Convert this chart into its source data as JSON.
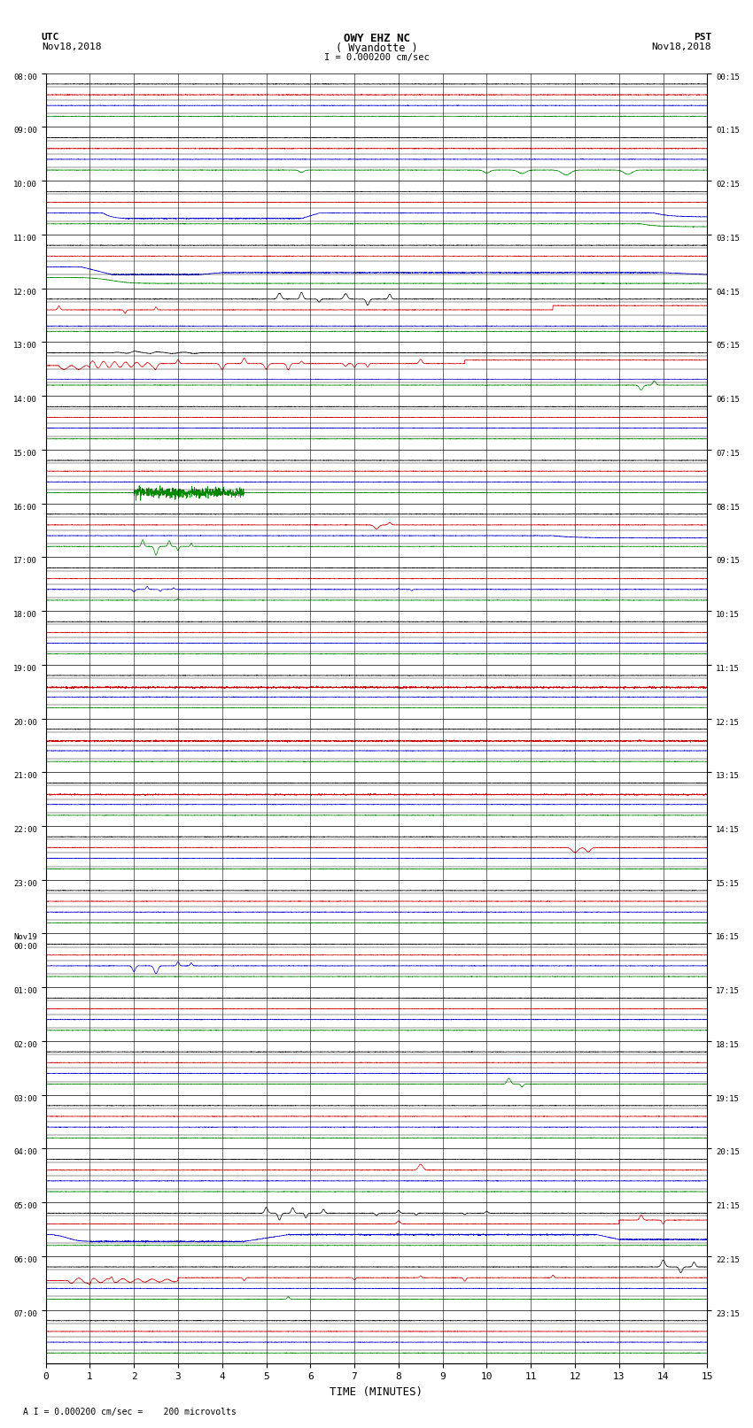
{
  "title_line1": "OWY EHZ NC",
  "title_line2": "( Wyandotte )",
  "title_scale": "I = 0.000200 cm/sec",
  "utc_label": "UTC",
  "utc_date": "Nov18,2018",
  "pst_label": "PST",
  "pst_date": "Nov18,2018",
  "xlabel": "TIME (MINUTES)",
  "footnote": "A I = 0.000200 cm/sec =    200 microvolts",
  "ytick_left": [
    "08:00",
    "09:00",
    "10:00",
    "11:00",
    "12:00",
    "13:00",
    "14:00",
    "15:00",
    "16:00",
    "17:00",
    "18:00",
    "19:00",
    "20:00",
    "21:00",
    "22:00",
    "23:00",
    "Nov19\n00:00",
    "01:00",
    "02:00",
    "03:00",
    "04:00",
    "05:00",
    "06:00",
    "07:00"
  ],
  "ytick_right": [
    "00:15",
    "01:15",
    "02:15",
    "03:15",
    "04:15",
    "05:15",
    "06:15",
    "07:15",
    "08:15",
    "09:15",
    "10:15",
    "11:15",
    "12:15",
    "13:15",
    "14:15",
    "15:15",
    "16:15",
    "17:15",
    "18:15",
    "19:15",
    "20:15",
    "21:15",
    "22:15",
    "23:15"
  ],
  "n_rows": 24,
  "x_min": 0,
  "x_max": 15,
  "xticks": [
    0,
    1,
    2,
    3,
    4,
    5,
    6,
    7,
    8,
    9,
    10,
    11,
    12,
    13,
    14,
    15
  ],
  "bg_color": "#ffffff",
  "grid_color": "#000000",
  "fig_width": 8.5,
  "fig_height": 16.13
}
